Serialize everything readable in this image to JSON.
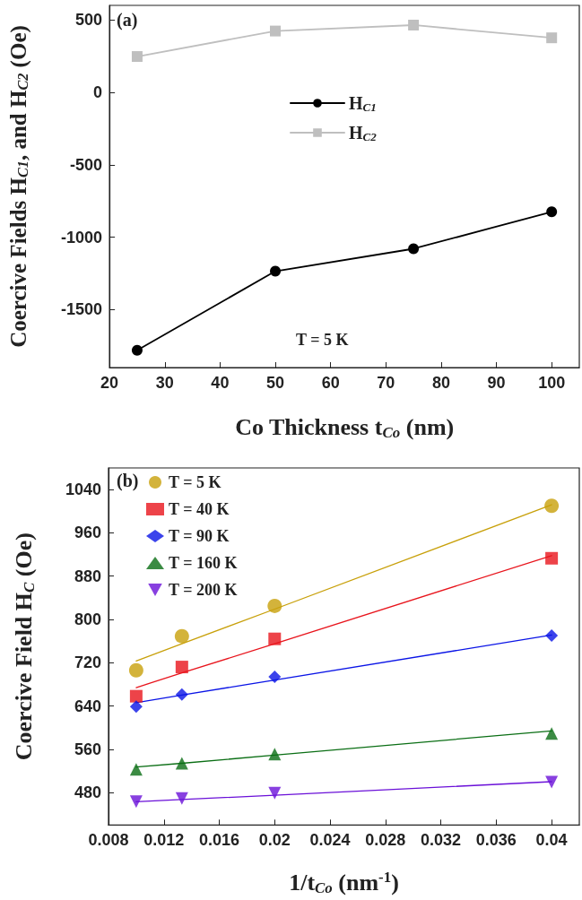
{
  "chart_data": [
    {
      "type": "line",
      "title": "(a)",
      "xlabel": "Co Thickness t$_{Co}$ (nm)",
      "ylabel": "Coercive Fields H$_{C1}$, and H$_{C2}$ (Oe)",
      "annotations": [
        "T = 5 K"
      ],
      "x": [
        25,
        50,
        75,
        100
      ],
      "xlim": [
        20,
        105
      ],
      "xticks": [
        20,
        30,
        40,
        50,
        60,
        70,
        80,
        90,
        100
      ],
      "ylim": [
        -1900,
        600
      ],
      "yticks": [
        -1500,
        -1000,
        -500,
        0,
        500
      ],
      "grid": false,
      "legend": "top",
      "line_style": "solid",
      "series": [
        {
          "name": "H$_{C1}$",
          "color": "#000000",
          "marker": "circle",
          "values": [
            -1781,
            -1235,
            -1080,
            -825
          ]
        },
        {
          "name": "H$_{C2}$",
          "color": "#bfbfbf",
          "marker": "square",
          "values": [
            247,
            423,
            464,
            376
          ]
        }
      ]
    },
    {
      "type": "scatter",
      "title": "(b)",
      "xlabel": "1/t$_{Co}$ (nm$^{-1}$)",
      "ylabel": "Coercive Field H$_{C}$ (Oe)",
      "x": [
        0.01,
        0.0133,
        0.02,
        0.04
      ],
      "xlim": [
        0.008,
        0.042
      ],
      "xticks": [
        0.008,
        0.012,
        0.016,
        0.02,
        0.024,
        0.028,
        0.032,
        0.036,
        0.04
      ],
      "ylim": [
        420,
        1080
      ],
      "yticks": [
        480,
        560,
        640,
        720,
        800,
        880,
        960,
        1040
      ],
      "grid": false,
      "legend": "top left",
      "series": [
        {
          "name": "T = 5 K",
          "color": "#c8a00a",
          "marker": "circle",
          "values": [
            706,
            769,
            825,
            1010
          ]
        },
        {
          "name": "T = 40 K",
          "color": "#e8141c",
          "marker": "square",
          "values": [
            658,
            712,
            764,
            913
          ]
        },
        {
          "name": "T = 90 K",
          "color": "#0a14e6",
          "marker": "diamond",
          "values": [
            639,
            661,
            694,
            770
          ]
        },
        {
          "name": "T = 160 K",
          "color": "#0a6e14",
          "marker": "triangle",
          "values": [
            523,
            534,
            551,
            589
          ]
        },
        {
          "name": "T = 200 K",
          "color": "#6a10d8",
          "marker": "triangle-down",
          "values": [
            463,
            469,
            479,
            499
          ]
        },
        {
          "type": "line",
          "color": "#c8a00a",
          "marker": "none",
          "values": [
            723,
            755,
            819,
            1012
          ]
        },
        {
          "type": "line",
          "color": "#e8141c",
          "marker": "none",
          "values": [
            674,
            701,
            755,
            918
          ]
        },
        {
          "type": "line",
          "color": "#0a14e6",
          "marker": "none",
          "values": [
            646,
            660,
            688,
            771
          ]
        },
        {
          "type": "line",
          "color": "#0a6e14",
          "marker": "none",
          "values": [
            527,
            534,
            549,
            594
          ]
        },
        {
          "type": "line",
          "color": "#6a10d8",
          "marker": "none",
          "values": [
            463,
            467,
            475,
            500
          ]
        }
      ]
    }
  ]
}
